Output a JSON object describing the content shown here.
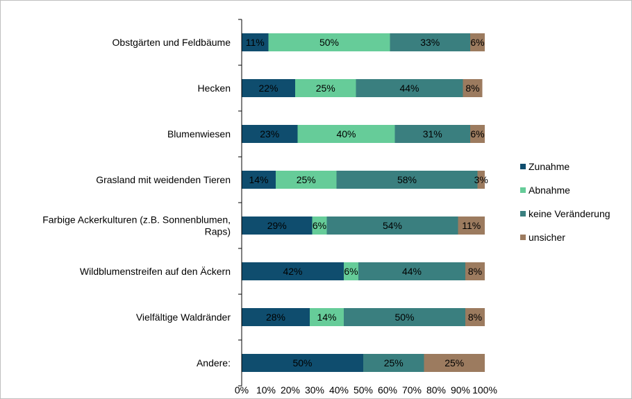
{
  "chart_data": {
    "type": "bar",
    "orientation": "horizontal",
    "stacked": true,
    "categories": [
      [
        "Obstgärten  und Feldbäume"
      ],
      [
        "Hecken"
      ],
      [
        "Blumenwiesen"
      ],
      [
        "Grasland mit weidenden Tieren"
      ],
      [
        "Farbige Ackerkulturen (z.B. Sonnenblumen,",
        "Raps)"
      ],
      [
        "Wildblumenstreifen auf den Äckern"
      ],
      [
        "Vielfältige Waldränder"
      ],
      [
        "Andere:"
      ]
    ],
    "series": [
      {
        "name": "Zunahme",
        "color": "#0f4d6e",
        "values": [
          11,
          22,
          23,
          14,
          29,
          42,
          28,
          50
        ],
        "labels": [
          "11%",
          "22%",
          "23%",
          "14%",
          "29%",
          "42%",
          "28%",
          "50%"
        ]
      },
      {
        "name": "Abnahme",
        "color": "#66cc99",
        "values": [
          50,
          25,
          40,
          25,
          6,
          6,
          14,
          0
        ],
        "labels": [
          "50%",
          "25%",
          "40%",
          "25%",
          "6%",
          "6%",
          "14%",
          ""
        ]
      },
      {
        "name": "keine Veränderung",
        "color": "#3a7f7f",
        "values": [
          33,
          44,
          31,
          58,
          54,
          44,
          50,
          25
        ],
        "labels": [
          "33%",
          "44%",
          "31%",
          "58%",
          "54%",
          "44%",
          "50%",
          "25%"
        ]
      },
      {
        "name": "unsicher",
        "color": "#9c7b5f",
        "values": [
          6,
          8,
          6,
          3,
          11,
          8,
          8,
          25
        ],
        "labels": [
          "6%",
          "8%",
          "6%",
          "3%",
          "11%",
          "8%",
          "8%",
          "25%"
        ]
      }
    ],
    "xticks": [
      "0%",
      "10%",
      "20%",
      "30%",
      "40%",
      "50%",
      "60%",
      "70%",
      "80%",
      "90%",
      "100%"
    ],
    "xlim": [
      0,
      100
    ],
    "grid": false,
    "legend": "right"
  }
}
